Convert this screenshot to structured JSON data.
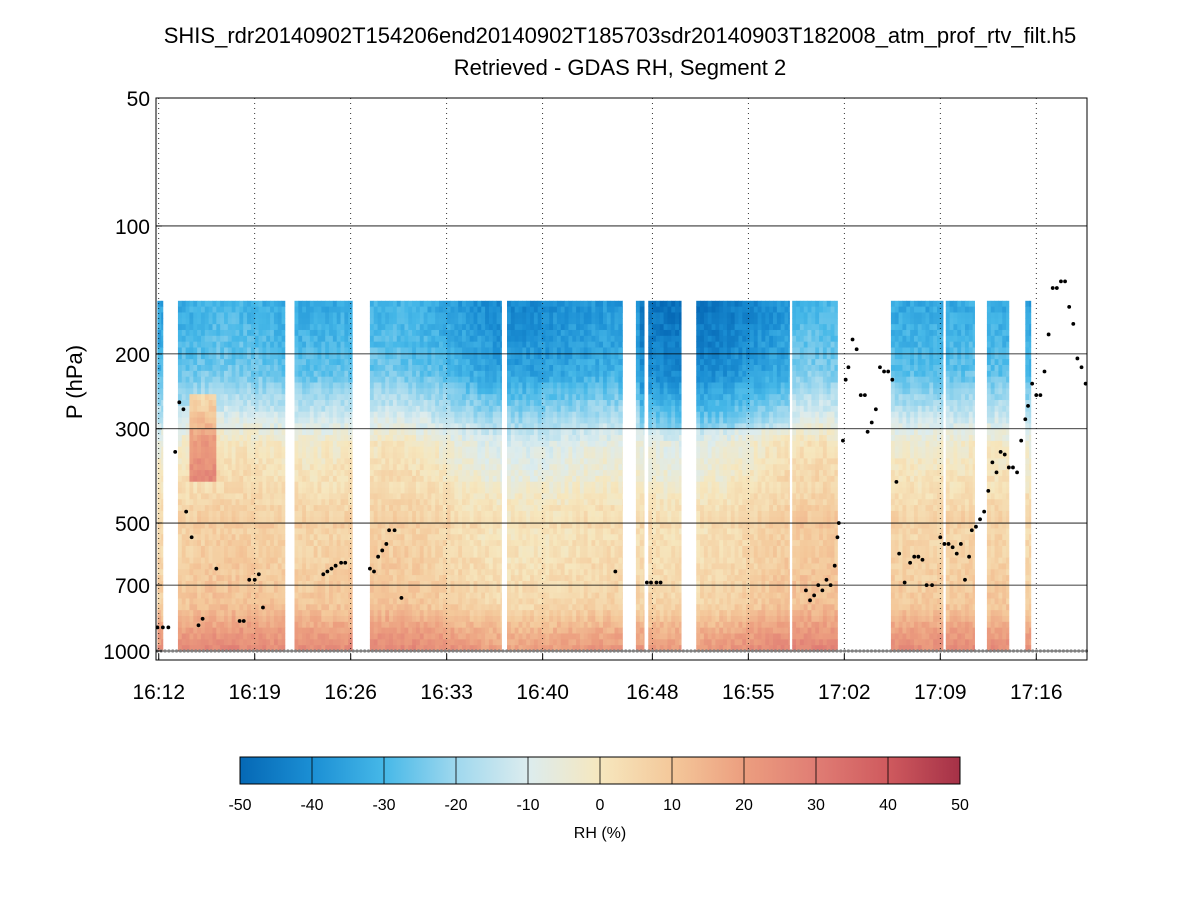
{
  "figure": {
    "title_line1": "SHIS_rdr20140902T154206end20140902T185703sdr20140903T182008_atm_prof_rtv_filt.h5",
    "title_line2": "Retrieved - GDAS RH, Segment 2"
  },
  "chart_data": {
    "type": "heatmap",
    "title": "SHIS_rdr20140902T154206end20140902T185703sdr20140903T182008_atm_prof_rtv_filt.h5",
    "subtitle": "Retrieved - GDAS RH, Segment 2",
    "xlabel": "",
    "ylabel": "P (hPa)",
    "x_ticks": [
      "16:12",
      "16:19",
      "16:26",
      "16:33",
      "16:40",
      "16:48",
      "16:55",
      "17:02",
      "17:09",
      "17:16"
    ],
    "x_tick_minutes": [
      972,
      979,
      986,
      993,
      1000,
      1008,
      1015,
      1022,
      1029,
      1036
    ],
    "xlim_minutes": [
      971.8,
      1039.7
    ],
    "y_scale": "log",
    "y_reversed": true,
    "ylim": [
      50,
      1050
    ],
    "y_ticks": [
      50,
      100,
      200,
      300,
      500,
      700,
      1000
    ],
    "x_grid": "dotted",
    "y_grid": "solid",
    "data_top_pressure_hPa": 150,
    "colorbar": {
      "label": "RH (%)",
      "range": [
        -50,
        50
      ],
      "ticks": [
        -50,
        -40,
        -30,
        -20,
        -10,
        0,
        10,
        20,
        30,
        40,
        50
      ],
      "colors": [
        "#0568b5",
        "#1b8fd4",
        "#46b8e8",
        "#9fd8ee",
        "#dcecee",
        "#f6e7be",
        "#f4c89a",
        "#ec9e7f",
        "#e07d74",
        "#cf5a5e",
        "#a53147"
      ]
    },
    "valid_segments_minutes": [
      [
        971.9,
        972.3
      ],
      [
        973.4,
        981.2
      ],
      [
        981.9,
        986.1
      ],
      [
        987.4,
        997.0
      ],
      [
        997.4,
        1005.8
      ],
      [
        1006.8,
        1007.4
      ],
      [
        1007.7,
        1010.1
      ],
      [
        1011.2,
        1018.0
      ],
      [
        1018.2,
        1021.5
      ],
      [
        1025.4,
        1029.2
      ],
      [
        1029.4,
        1031.5
      ],
      [
        1032.4,
        1034.0
      ],
      [
        1035.2,
        1035.6
      ]
    ],
    "cloud_top_markers": [
      {
        "t": 971.9,
        "p": 880
      },
      {
        "t": 972.3,
        "p": 880
      },
      {
        "t": 972.7,
        "p": 880
      },
      {
        "t": 973.2,
        "p": 340
      },
      {
        "t": 973.5,
        "p": 260
      },
      {
        "t": 973.8,
        "p": 270
      },
      {
        "t": 974.0,
        "p": 470
      },
      {
        "t": 974.4,
        "p": 540
      },
      {
        "t": 974.9,
        "p": 870
      },
      {
        "t": 975.2,
        "p": 840
      },
      {
        "t": 976.2,
        "p": 640
      },
      {
        "t": 977.9,
        "p": 850
      },
      {
        "t": 978.2,
        "p": 850
      },
      {
        "t": 978.6,
        "p": 680
      },
      {
        "t": 979.0,
        "p": 680
      },
      {
        "t": 979.3,
        "p": 660
      },
      {
        "t": 979.6,
        "p": 790
      },
      {
        "t": 984.0,
        "p": 660
      },
      {
        "t": 984.3,
        "p": 650
      },
      {
        "t": 984.6,
        "p": 640
      },
      {
        "t": 984.9,
        "p": 630
      },
      {
        "t": 985.3,
        "p": 620
      },
      {
        "t": 985.6,
        "p": 620
      },
      {
        "t": 987.4,
        "p": 640
      },
      {
        "t": 987.7,
        "p": 650
      },
      {
        "t": 988.0,
        "p": 600
      },
      {
        "t": 988.3,
        "p": 580
      },
      {
        "t": 988.6,
        "p": 560
      },
      {
        "t": 988.8,
        "p": 520
      },
      {
        "t": 989.2,
        "p": 520
      },
      {
        "t": 989.7,
        "p": 750
      },
      {
        "t": 1005.3,
        "p": 650
      },
      {
        "t": 1007.6,
        "p": 690
      },
      {
        "t": 1007.9,
        "p": 690
      },
      {
        "t": 1008.3,
        "p": 690
      },
      {
        "t": 1008.6,
        "p": 690
      },
      {
        "t": 1019.2,
        "p": 720
      },
      {
        "t": 1019.5,
        "p": 760
      },
      {
        "t": 1019.8,
        "p": 740
      },
      {
        "t": 1020.1,
        "p": 700
      },
      {
        "t": 1020.4,
        "p": 720
      },
      {
        "t": 1020.7,
        "p": 680
      },
      {
        "t": 1021.0,
        "p": 700
      },
      {
        "t": 1021.3,
        "p": 630
      },
      {
        "t": 1021.5,
        "p": 540
      },
      {
        "t": 1021.6,
        "p": 500
      },
      {
        "t": 1021.9,
        "p": 320
      },
      {
        "t": 1022.1,
        "p": 230
      },
      {
        "t": 1022.3,
        "p": 215
      },
      {
        "t": 1022.6,
        "p": 185
      },
      {
        "t": 1022.9,
        "p": 195
      },
      {
        "t": 1023.2,
        "p": 250
      },
      {
        "t": 1023.5,
        "p": 250
      },
      {
        "t": 1023.7,
        "p": 305
      },
      {
        "t": 1024.0,
        "p": 290
      },
      {
        "t": 1024.3,
        "p": 270
      },
      {
        "t": 1024.6,
        "p": 215
      },
      {
        "t": 1024.9,
        "p": 220
      },
      {
        "t": 1025.2,
        "p": 220
      },
      {
        "t": 1025.5,
        "p": 230
      },
      {
        "t": 1025.8,
        "p": 400
      },
      {
        "t": 1026.0,
        "p": 590
      },
      {
        "t": 1026.4,
        "p": 690
      },
      {
        "t": 1026.8,
        "p": 620
      },
      {
        "t": 1027.1,
        "p": 600
      },
      {
        "t": 1027.4,
        "p": 600
      },
      {
        "t": 1027.7,
        "p": 610
      },
      {
        "t": 1028.0,
        "p": 700
      },
      {
        "t": 1028.4,
        "p": 700
      },
      {
        "t": 1029.0,
        "p": 540
      },
      {
        "t": 1029.3,
        "p": 560
      },
      {
        "t": 1029.6,
        "p": 560
      },
      {
        "t": 1029.9,
        "p": 570
      },
      {
        "t": 1030.2,
        "p": 590
      },
      {
        "t": 1030.5,
        "p": 560
      },
      {
        "t": 1030.8,
        "p": 680
      },
      {
        "t": 1031.1,
        "p": 600
      },
      {
        "t": 1031.3,
        "p": 520
      },
      {
        "t": 1031.6,
        "p": 510
      },
      {
        "t": 1031.9,
        "p": 490
      },
      {
        "t": 1032.2,
        "p": 470
      },
      {
        "t": 1032.5,
        "p": 420
      },
      {
        "t": 1032.8,
        "p": 360
      },
      {
        "t": 1033.1,
        "p": 380
      },
      {
        "t": 1033.4,
        "p": 340
      },
      {
        "t": 1033.7,
        "p": 345
      },
      {
        "t": 1034.0,
        "p": 370
      },
      {
        "t": 1034.3,
        "p": 370
      },
      {
        "t": 1034.6,
        "p": 380
      },
      {
        "t": 1034.9,
        "p": 320
      },
      {
        "t": 1035.2,
        "p": 285
      },
      {
        "t": 1035.4,
        "p": 265
      },
      {
        "t": 1035.7,
        "p": 235
      },
      {
        "t": 1036.0,
        "p": 250
      },
      {
        "t": 1036.3,
        "p": 250
      },
      {
        "t": 1036.6,
        "p": 220
      },
      {
        "t": 1036.9,
        "p": 180
      },
      {
        "t": 1037.2,
        "p": 140
      },
      {
        "t": 1037.5,
        "p": 140
      },
      {
        "t": 1037.8,
        "p": 135
      },
      {
        "t": 1038.1,
        "p": 135
      },
      {
        "t": 1038.4,
        "p": 155
      },
      {
        "t": 1038.7,
        "p": 170
      },
      {
        "t": 1039.0,
        "p": 205
      },
      {
        "t": 1039.3,
        "p": 215
      },
      {
        "t": 1039.6,
        "p": 235
      }
    ],
    "surface_marker_pressure_hPa": 1000
  }
}
